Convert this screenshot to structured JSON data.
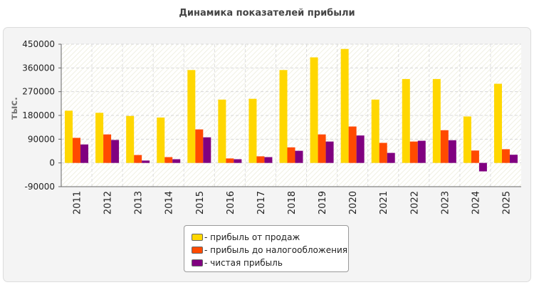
{
  "chart_data": {
    "type": "bar",
    "title": "Динамика показателей прибыли",
    "ylabel": "тыс.",
    "xlabel": "",
    "ylim": [
      -90000,
      450000
    ],
    "yticks": [
      450000,
      360000,
      270000,
      180000,
      90000,
      0,
      -90000
    ],
    "grid": true,
    "legend": "bottom-center",
    "categories": [
      "2011",
      "2012",
      "2013",
      "2014",
      "2015",
      "2016",
      "2017",
      "2018",
      "2019",
      "2020",
      "2021",
      "2022",
      "2023",
      "2024",
      "2025"
    ],
    "series": [
      {
        "name": "- прибыль от продаж",
        "color": "#ffd700",
        "values": [
          198000,
          190000,
          178000,
          172000,
          352000,
          240000,
          243000,
          352000,
          400000,
          432000,
          240000,
          318000,
          318000,
          176000,
          300000
        ]
      },
      {
        "name": "- прибыль до налогообложения",
        "color": "#ff4a00",
        "values": [
          95000,
          108000,
          30000,
          22000,
          127000,
          17000,
          25000,
          59000,
          108000,
          138000,
          76000,
          81000,
          124000,
          47000,
          52000
        ]
      },
      {
        "name": "- чистая прибыль",
        "color": "#800080",
        "values": [
          70000,
          87000,
          9000,
          14000,
          97000,
          14000,
          22000,
          46000,
          81000,
          104000,
          38000,
          84000,
          86000,
          -32000,
          31000
        ]
      }
    ]
  }
}
